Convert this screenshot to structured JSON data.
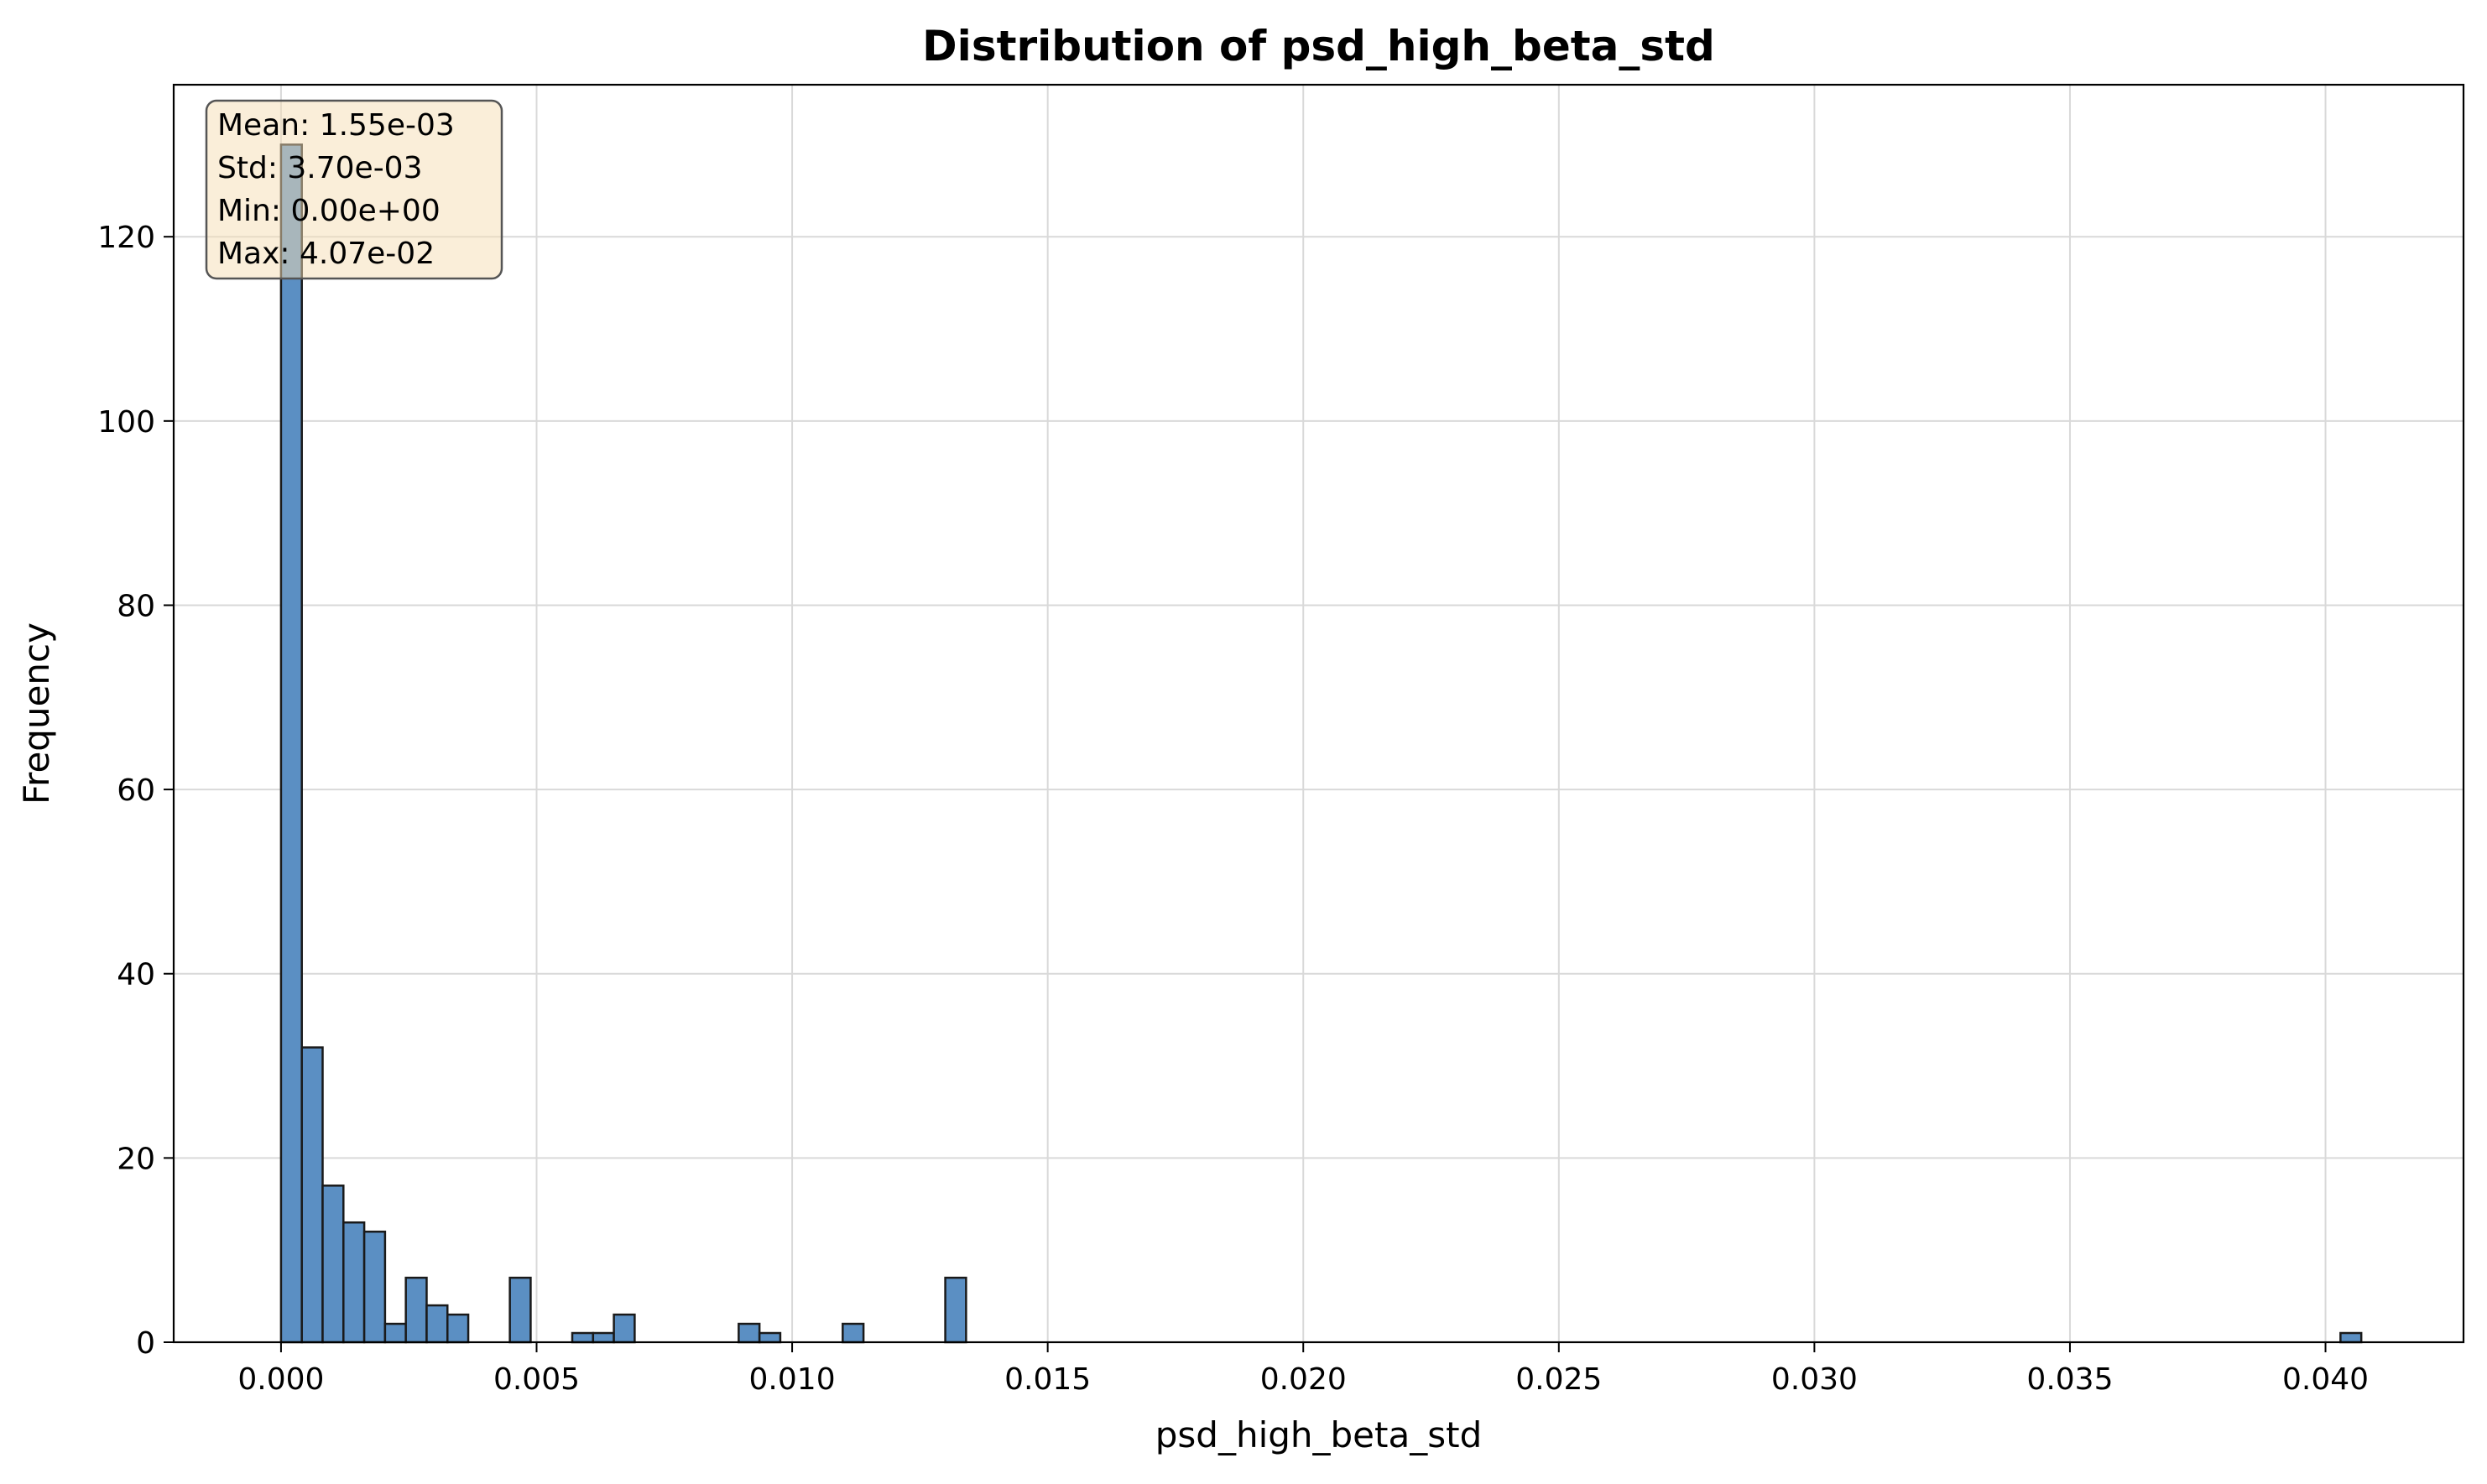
{
  "chart_data": {
    "type": "bar",
    "title": "Distribution of psd_high_beta_std",
    "xlabel": "psd_high_beta_std",
    "ylabel": "Frequency",
    "xlim": [
      -0.0021,
      0.0427
    ],
    "ylim": [
      0,
      136.5
    ],
    "x_ticks": [
      0.0,
      0.005,
      0.01,
      0.015,
      0.02,
      0.025,
      0.03,
      0.035,
      0.04
    ],
    "x_tick_labels": [
      "0.000",
      "0.005",
      "0.010",
      "0.015",
      "0.020",
      "0.025",
      "0.030",
      "0.035",
      "0.040"
    ],
    "y_ticks": [
      0,
      20,
      40,
      60,
      80,
      100,
      120
    ],
    "y_tick_labels": [
      "0",
      "20",
      "40",
      "60",
      "80",
      "100",
      "120"
    ],
    "grid": true,
    "bar_color": "#5b8fc3",
    "edge_color": "#1a1a1a",
    "bin_width": 0.000407,
    "bins": [
      {
        "x": 0.0,
        "count": 130
      },
      {
        "x": 0.000407,
        "count": 32
      },
      {
        "x": 0.000814,
        "count": 17
      },
      {
        "x": 0.001221,
        "count": 13
      },
      {
        "x": 0.001628,
        "count": 12
      },
      {
        "x": 0.002035,
        "count": 2
      },
      {
        "x": 0.002442,
        "count": 7
      },
      {
        "x": 0.002849,
        "count": 4
      },
      {
        "x": 0.003256,
        "count": 3
      },
      {
        "x": 0.004477,
        "count": 7
      },
      {
        "x": 0.005698,
        "count": 1
      },
      {
        "x": 0.006105,
        "count": 1
      },
      {
        "x": 0.006512,
        "count": 3
      },
      {
        "x": 0.008954,
        "count": 2
      },
      {
        "x": 0.009361,
        "count": 1
      },
      {
        "x": 0.010989,
        "count": 2
      },
      {
        "x": 0.012996,
        "count": 7
      },
      {
        "x": 0.040293,
        "count": 1
      }
    ],
    "stats_box": {
      "lines": [
        "Mean: 1.55e-03",
        "Std: 3.70e-03",
        "Min: 0.00e+00",
        "Max: 4.07e-02"
      ],
      "background": "#f5deb3",
      "placement": "top-left"
    }
  }
}
